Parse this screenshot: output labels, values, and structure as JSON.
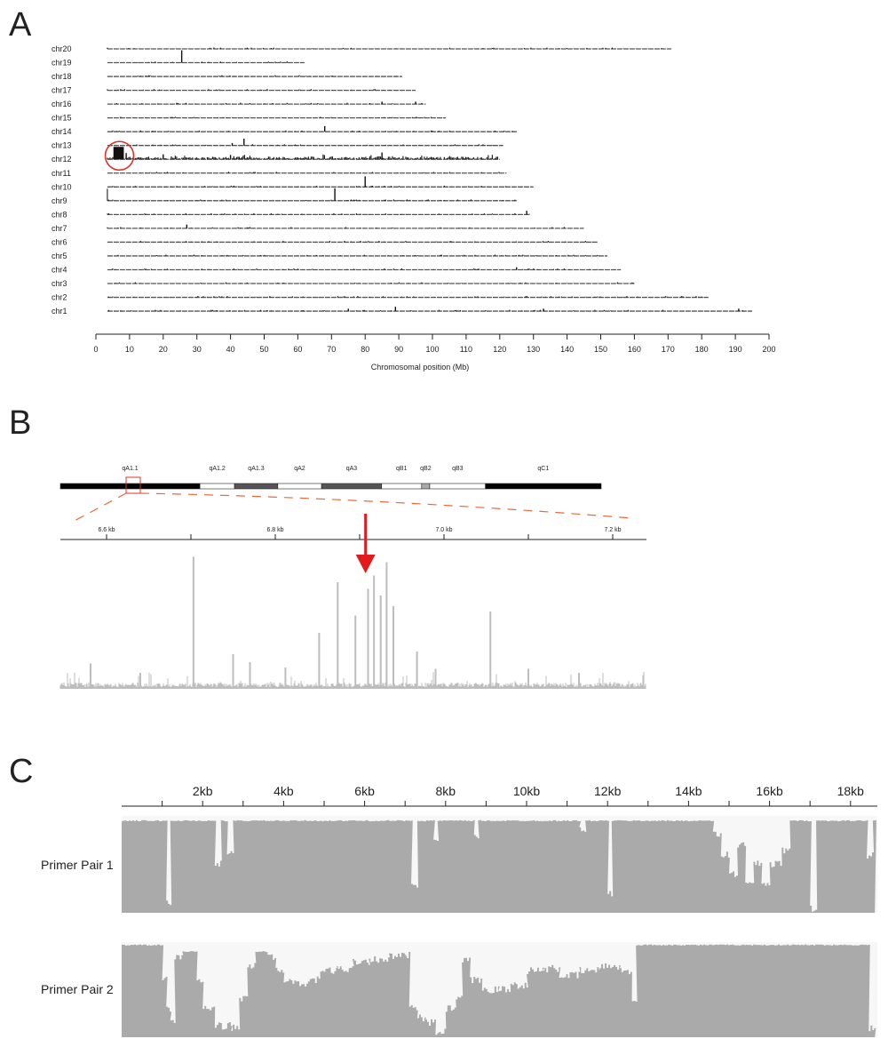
{
  "panels": {
    "a": "A",
    "b": "B",
    "c": "C"
  },
  "chart_data": [
    {
      "type": "line",
      "panel": "A",
      "xlabel": "Chromosomal position (Mb)",
      "xlim": [
        0,
        200
      ],
      "xticks": [
        0,
        10,
        20,
        30,
        40,
        50,
        60,
        70,
        80,
        90,
        100,
        110,
        120,
        130,
        140,
        150,
        160,
        170,
        180,
        190,
        200
      ],
      "chromosomes": [
        {
          "name": "chr20",
          "length": 171,
          "peaks": []
        },
        {
          "name": "chr19",
          "length": 62,
          "peaks": [
            [
              25.5,
              1.0
            ]
          ]
        },
        {
          "name": "chr18",
          "length": 91,
          "peaks": []
        },
        {
          "name": "chr17",
          "length": 95,
          "peaks": []
        },
        {
          "name": "chr16",
          "length": 98,
          "peaks": [
            [
              85,
              0.2
            ],
            [
              95,
              0.2
            ]
          ]
        },
        {
          "name": "chr15",
          "length": 104,
          "peaks": []
        },
        {
          "name": "chr14",
          "length": 125,
          "peaks": [
            [
              68,
              0.45
            ]
          ]
        },
        {
          "name": "chr13",
          "length": 121,
          "peaks": [
            [
              40.5,
              0.2
            ],
            [
              44,
              0.55
            ]
          ]
        },
        {
          "name": "chr12",
          "length": 120,
          "peaks": [
            [
              6,
              1.0
            ],
            [
              7.5,
              1.0
            ],
            [
              9,
              0.5
            ],
            [
              20,
              0.4
            ],
            [
              40,
              0.35
            ],
            [
              85,
              0.55
            ]
          ],
          "enriched": true
        },
        {
          "name": "chr11",
          "length": 122,
          "peaks": []
        },
        {
          "name": "chr10",
          "length": 130,
          "peaks": [
            [
              80,
              0.85
            ]
          ]
        },
        {
          "name": "chr9",
          "length": 125,
          "peaks": [
            [
              71,
              1.0
            ]
          ]
        },
        {
          "name": "chr8",
          "length": 129,
          "peaks": [
            [
              128,
              0.3
            ]
          ]
        },
        {
          "name": "chr7",
          "length": 145,
          "peaks": [
            [
              27,
              0.3
            ]
          ]
        },
        {
          "name": "chr6",
          "length": 149,
          "peaks": []
        },
        {
          "name": "chr5",
          "length": 152,
          "peaks": []
        },
        {
          "name": "chr4",
          "length": 156,
          "peaks": [
            [
              125,
              0.2
            ]
          ]
        },
        {
          "name": "chr3",
          "length": 160,
          "peaks": []
        },
        {
          "name": "chr2",
          "length": 182,
          "peaks": []
        },
        {
          "name": "chr1",
          "length": 195,
          "peaks": [
            [
              75,
              0.2
            ],
            [
              89,
              0.35
            ],
            [
              133,
              0.2
            ],
            [
              191,
              0.2
            ]
          ]
        }
      ],
      "highlight": {
        "chromosome": "chr12",
        "position_mb": 7,
        "color": "#e0302a"
      }
    },
    {
      "type": "area",
      "panel": "B",
      "ideogram_bands": [
        {
          "name": "qA1.1",
          "start": 0,
          "end": 0.258,
          "stain": "#000000"
        },
        {
          "name": "qA1.2",
          "start": 0.258,
          "end": 0.322,
          "stain": "#ffffff"
        },
        {
          "name": "qA1.3",
          "start": 0.322,
          "end": 0.402,
          "stain": "#555555"
        },
        {
          "name": "qA2",
          "start": 0.402,
          "end": 0.483,
          "stain": "#ffffff"
        },
        {
          "name": "qA3",
          "start": 0.483,
          "end": 0.594,
          "stain": "#555555"
        },
        {
          "name": "qB1",
          "start": 0.594,
          "end": 0.668,
          "stain": "#ffffff"
        },
        {
          "name": "qB2",
          "start": 0.668,
          "end": 0.683,
          "stain": "#aaaaaa"
        },
        {
          "name": "qB3",
          "start": 0.683,
          "end": 0.786,
          "stain": "#ffffff"
        },
        {
          "name": "qC1",
          "start": 0.786,
          "end": 1.0,
          "stain": "#000000"
        }
      ],
      "xlim_kb": [
        6.545,
        7.245
      ],
      "xticks": [
        {
          "kb": 6.6,
          "label": "6.6 kb"
        },
        {
          "kb": 6.7,
          "label": ""
        },
        {
          "kb": 6.8,
          "label": "6.8 kb"
        },
        {
          "kb": 6.9,
          "label": ""
        },
        {
          "kb": 7.0,
          "label": "7.0 kb"
        },
        {
          "kb": 7.1,
          "label": ""
        },
        {
          "kb": 7.2,
          "label": "7.2 kb"
        }
      ],
      "arrow_kb": 6.907,
      "peaks_kb": [
        [
          6.703,
          0.99
        ],
        [
          6.581,
          0.19
        ],
        [
          6.64,
          0.12
        ],
        [
          6.75,
          0.26
        ],
        [
          6.77,
          0.2
        ],
        [
          6.812,
          0.16
        ],
        [
          6.852,
          0.42
        ],
        [
          6.874,
          0.8
        ],
        [
          6.895,
          0.55
        ],
        [
          6.91,
          0.75
        ],
        [
          6.917,
          0.85
        ],
        [
          6.925,
          0.7
        ],
        [
          6.932,
          0.95
        ],
        [
          6.94,
          0.62
        ],
        [
          6.968,
          0.28
        ],
        [
          6.99,
          0.15
        ],
        [
          7.055,
          0.58
        ],
        [
          7.1,
          0.15
        ],
        [
          7.16,
          0.12
        ]
      ],
      "color": "#bdbdbd"
    },
    {
      "type": "area",
      "panel": "C",
      "xlim_kb": [
        0,
        18.65
      ],
      "xticks": [
        {
          "kb": 2,
          "label": "2kb"
        },
        {
          "kb": 4,
          "label": "4kb"
        },
        {
          "kb": 6,
          "label": "6kb"
        },
        {
          "kb": 8,
          "label": "8kb"
        },
        {
          "kb": 10,
          "label": "10kb"
        },
        {
          "kb": 12,
          "label": "12kb"
        },
        {
          "kb": 14,
          "label": "14kb"
        },
        {
          "kb": 16,
          "label": "16kb"
        },
        {
          "kb": 18,
          "label": "18kb"
        }
      ],
      "color": "#aaaaaa",
      "series": [
        {
          "name": "Primer Pair 1",
          "coverage": [
            [
              0,
              0.95
            ],
            [
              1.0,
              0.95
            ],
            [
              1.1,
              0.1
            ],
            [
              1.2,
              0.95
            ],
            [
              2.2,
              0.95
            ],
            [
              2.3,
              0.5
            ],
            [
              2.45,
              0.95
            ],
            [
              2.6,
              0.6
            ],
            [
              2.75,
              0.95
            ],
            [
              7.1,
              0.95
            ],
            [
              7.15,
              0.3
            ],
            [
              7.3,
              0.95
            ],
            [
              7.7,
              0.75
            ],
            [
              7.8,
              0.95
            ],
            [
              8.7,
              0.8
            ],
            [
              8.8,
              0.95
            ],
            [
              11.3,
              0.85
            ],
            [
              11.45,
              0.95
            ],
            [
              11.95,
              0.95
            ],
            [
              12.0,
              0.2
            ],
            [
              12.1,
              0.95
            ],
            [
              14.5,
              0.95
            ],
            [
              14.6,
              0.8
            ],
            [
              14.8,
              0.6
            ],
            [
              15.0,
              0.4
            ],
            [
              15.2,
              0.7
            ],
            [
              15.4,
              0.3
            ],
            [
              15.6,
              0.5
            ],
            [
              15.8,
              0.3
            ],
            [
              16.0,
              0.5
            ],
            [
              16.3,
              0.65
            ],
            [
              16.5,
              0.95
            ],
            [
              16.95,
              0.95
            ],
            [
              17.0,
              0.05
            ],
            [
              17.15,
              0.95
            ],
            [
              18.3,
              0.95
            ],
            [
              18.4,
              0.6
            ],
            [
              18.55,
              0.95
            ],
            [
              18.6,
              0.95
            ]
          ]
        },
        {
          "name": "Primer Pair 2",
          "coverage": [
            [
              0,
              0.97
            ],
            [
              0.9,
              0.97
            ],
            [
              1.0,
              0.6
            ],
            [
              1.1,
              0.3
            ],
            [
              1.2,
              0.15
            ],
            [
              1.3,
              0.85
            ],
            [
              1.5,
              0.9
            ],
            [
              1.7,
              0.9
            ],
            [
              1.85,
              0.6
            ],
            [
              2.0,
              0.3
            ],
            [
              2.3,
              0.12
            ],
            [
              2.7,
              0.1
            ],
            [
              2.9,
              0.4
            ],
            [
              3.1,
              0.75
            ],
            [
              3.3,
              0.9
            ],
            [
              3.6,
              0.85
            ],
            [
              3.8,
              0.7
            ],
            [
              4.0,
              0.6
            ],
            [
              4.3,
              0.55
            ],
            [
              4.6,
              0.6
            ],
            [
              4.9,
              0.7
            ],
            [
              5.3,
              0.72
            ],
            [
              5.7,
              0.8
            ],
            [
              6.1,
              0.82
            ],
            [
              6.6,
              0.85
            ],
            [
              7.0,
              0.87
            ],
            [
              7.1,
              0.3
            ],
            [
              7.3,
              0.2
            ],
            [
              7.5,
              0.15
            ],
            [
              7.75,
              0.05
            ],
            [
              8.0,
              0.3
            ],
            [
              8.25,
              0.4
            ],
            [
              8.4,
              0.8
            ],
            [
              8.6,
              0.6
            ],
            [
              8.9,
              0.5
            ],
            [
              9.3,
              0.5
            ],
            [
              9.6,
              0.55
            ],
            [
              10.0,
              0.7
            ],
            [
              10.4,
              0.72
            ],
            [
              10.8,
              0.65
            ],
            [
              11.3,
              0.7
            ],
            [
              11.8,
              0.75
            ],
            [
              12.3,
              0.7
            ],
            [
              12.6,
              0.35
            ],
            [
              12.7,
              0.97
            ],
            [
              18.35,
              0.97
            ],
            [
              18.45,
              0.1
            ],
            [
              18.6,
              0.1
            ]
          ]
        }
      ]
    }
  ]
}
